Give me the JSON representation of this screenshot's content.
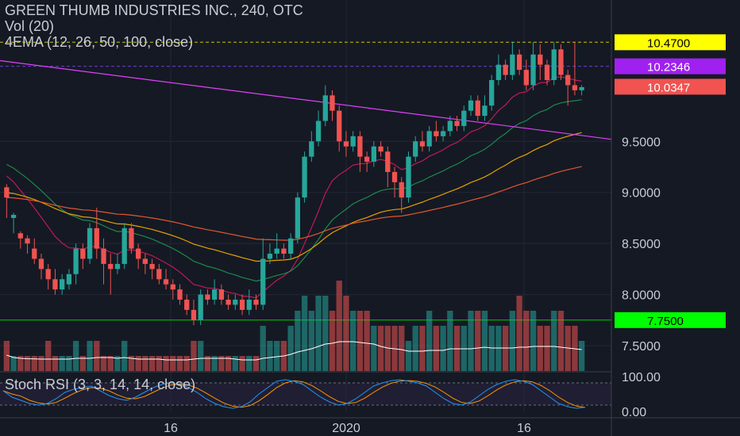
{
  "header": {
    "title": "GREEN THUMB INDUSTRIES INC., 240, OTC",
    "vol_label": "Vol (20)",
    "ema_label": "4EMA (12, 26, 50, 100, close)"
  },
  "stoch_panel": {
    "label": "Stoch RSI (3, 3, 14, 14, close)"
  },
  "price_axis": {
    "ticks": [
      "9.5000",
      "9.0000",
      "8.5000",
      "8.0000",
      "7.5000"
    ]
  },
  "stoch_axis": {
    "ticks": [
      "100.00",
      "0.00"
    ]
  },
  "time_axis": {
    "ticks": [
      "16",
      "2020",
      "16"
    ]
  },
  "price_tags": [
    {
      "text": "10.4700",
      "color": "#ffff00",
      "text_color": "#000000"
    },
    {
      "text": "10.2346",
      "color": "#a020f0",
      "text_color": "#ffffff"
    },
    {
      "text": "10.0347",
      "color": "#f05350",
      "text_color": "#ffffff"
    },
    {
      "text": "7.7500",
      "color": "#00ff00",
      "text_color": "#000000"
    }
  ],
  "colors": {
    "background": "#151924",
    "up_candle": "#26a69a",
    "down_candle": "#ef5350",
    "ema12": "#c2185b",
    "ema26": "#1b8a4a",
    "ema50": "#e6a100",
    "ema100": "#e0582e",
    "trendline": "#e040fb",
    "volume_ma": "#ffffff",
    "stoch_k": "#2196f3",
    "stoch_d": "#ff9800"
  },
  "chart_data": {
    "type": "candlestick",
    "title": "GREEN THUMB INDUSTRIES INC., 240, OTC",
    "y_range": [
      7.5,
      10.55
    ],
    "x_ticks": [
      "16",
      "2020",
      "16"
    ],
    "candles": [
      [
        9.05,
        8.95,
        9.08,
        8.75
      ],
      [
        8.75,
        8.78,
        8.8,
        8.6
      ],
      [
        8.6,
        8.55,
        8.62,
        8.45
      ],
      [
        8.55,
        8.5,
        8.58,
        8.4
      ],
      [
        8.45,
        8.35,
        8.55,
        8.3
      ],
      [
        8.35,
        8.25,
        8.4,
        8.15
      ],
      [
        8.25,
        8.15,
        8.3,
        8.05
      ],
      [
        8.15,
        8.05,
        8.25,
        8.0
      ],
      [
        8.05,
        8.15,
        8.2,
        8.0
      ],
      [
        8.1,
        8.2,
        8.25,
        8.05
      ],
      [
        8.2,
        8.45,
        8.5,
        8.1
      ],
      [
        8.45,
        8.35,
        8.5,
        8.25
      ],
      [
        8.35,
        8.65,
        8.7,
        8.3
      ],
      [
        8.65,
        8.45,
        8.85,
        8.35
      ],
      [
        8.45,
        8.3,
        8.55,
        8.1
      ],
      [
        8.3,
        8.25,
        8.4,
        8.0
      ],
      [
        8.25,
        8.3,
        8.4,
        8.2
      ],
      [
        8.3,
        8.65,
        8.7,
        8.25
      ],
      [
        8.65,
        8.45,
        8.7,
        8.4
      ],
      [
        8.45,
        8.35,
        8.5,
        8.25
      ],
      [
        8.35,
        8.3,
        8.4,
        8.2
      ],
      [
        8.3,
        8.25,
        8.35,
        8.15
      ],
      [
        8.25,
        8.15,
        8.3,
        8.1
      ],
      [
        8.15,
        8.1,
        8.25,
        8.05
      ],
      [
        8.1,
        8.05,
        8.15,
        7.95
      ],
      [
        8.05,
        7.95,
        8.1,
        7.9
      ],
      [
        7.95,
        7.85,
        8.0,
        7.8
      ],
      [
        7.85,
        7.75,
        7.95,
        7.7
      ],
      [
        7.75,
        8.0,
        8.05,
        7.7
      ],
      [
        8.0,
        7.95,
        8.05,
        7.9
      ],
      [
        7.95,
        8.05,
        8.15,
        7.9
      ],
      [
        8.05,
        7.95,
        8.1,
        7.9
      ],
      [
        7.95,
        7.9,
        8.0,
        7.85
      ],
      [
        7.9,
        7.95,
        8.0,
        7.85
      ],
      [
        7.95,
        7.85,
        8.0,
        7.8
      ],
      [
        7.85,
        7.95,
        8.05,
        7.8
      ],
      [
        7.95,
        7.9,
        8.0,
        7.85
      ],
      [
        7.9,
        8.35,
        8.55,
        7.85
      ],
      [
        8.35,
        8.4,
        8.5,
        8.3
      ],
      [
        8.4,
        8.45,
        8.6,
        8.35
      ],
      [
        8.45,
        8.4,
        8.5,
        8.35
      ],
      [
        8.4,
        8.55,
        8.6,
        8.35
      ],
      [
        8.55,
        8.95,
        9.0,
        8.5
      ],
      [
        8.95,
        9.35,
        9.4,
        8.9
      ],
      [
        9.35,
        9.5,
        9.6,
        9.3
      ],
      [
        9.5,
        9.7,
        9.8,
        9.45
      ],
      [
        9.7,
        9.95,
        10.05,
        9.65
      ],
      [
        9.95,
        9.8,
        10.0,
        9.7
      ],
      [
        9.8,
        9.5,
        9.85,
        9.4
      ],
      [
        9.5,
        9.45,
        9.6,
        9.35
      ],
      [
        9.45,
        9.55,
        9.6,
        9.4
      ],
      [
        9.55,
        9.35,
        9.6,
        9.2
      ],
      [
        9.35,
        9.3,
        9.4,
        9.2
      ],
      [
        9.3,
        9.45,
        9.5,
        9.25
      ],
      [
        9.45,
        9.4,
        9.5,
        9.35
      ],
      [
        9.4,
        9.2,
        9.45,
        9.05
      ],
      [
        9.2,
        9.1,
        9.25,
        8.95
      ],
      [
        9.1,
        8.95,
        9.15,
        8.8
      ],
      [
        8.95,
        9.35,
        9.4,
        8.9
      ],
      [
        9.35,
        9.5,
        9.55,
        9.3
      ],
      [
        9.5,
        9.45,
        9.6,
        9.4
      ],
      [
        9.45,
        9.6,
        9.65,
        9.4
      ],
      [
        9.6,
        9.55,
        9.7,
        9.5
      ],
      [
        9.55,
        9.6,
        9.65,
        9.5
      ],
      [
        9.6,
        9.7,
        9.75,
        9.55
      ],
      [
        9.7,
        9.65,
        9.75,
        9.6
      ],
      [
        9.65,
        9.8,
        9.85,
        9.6
      ],
      [
        9.8,
        9.9,
        9.95,
        9.75
      ],
      [
        9.9,
        9.75,
        9.95,
        9.7
      ],
      [
        9.75,
        9.85,
        9.95,
        9.7
      ],
      [
        9.85,
        10.1,
        10.15,
        9.8
      ],
      [
        10.1,
        10.25,
        10.35,
        10.05
      ],
      [
        10.25,
        10.15,
        10.3,
        10.1
      ],
      [
        10.15,
        10.35,
        10.47,
        10.1
      ],
      [
        10.35,
        10.2,
        10.4,
        10.15
      ],
      [
        10.2,
        10.05,
        10.3,
        10.0
      ],
      [
        10.05,
        10.35,
        10.47,
        10.0
      ],
      [
        10.35,
        10.25,
        10.45,
        10.1
      ],
      [
        10.25,
        10.1,
        10.3,
        10.05
      ],
      [
        10.1,
        10.4,
        10.47,
        10.05
      ],
      [
        10.4,
        10.15,
        10.45,
        10.1
      ],
      [
        10.15,
        10.05,
        10.2,
        9.85
      ],
      [
        10.05,
        10.0,
        10.47,
        9.95
      ],
      [
        10.0,
        10.03,
        10.05,
        9.95
      ]
    ],
    "volume": [
      2,
      1,
      1,
      1,
      1,
      1,
      2,
      1,
      1,
      1,
      2,
      1,
      2,
      2,
      1,
      1,
      1,
      2,
      1,
      1,
      1,
      1,
      1,
      1,
      1,
      1,
      1,
      2,
      2,
      1,
      1,
      1,
      1,
      1,
      1,
      1,
      1,
      3,
      2,
      2,
      2,
      3,
      4,
      5,
      4,
      5,
      5,
      4,
      6,
      5,
      4,
      4,
      4,
      3,
      3,
      3,
      3,
      3,
      2,
      3,
      3,
      4,
      3,
      3,
      4,
      3,
      3,
      4,
      4,
      4,
      3,
      3,
      3,
      4,
      5,
      4,
      4,
      3,
      3,
      4,
      4,
      3,
      3,
      2
    ],
    "stoch_k": [
      60,
      40,
      30,
      20,
      15,
      20,
      35,
      55,
      65,
      70,
      75,
      60,
      45,
      35,
      30,
      40,
      55,
      70,
      80,
      85,
      80,
      70,
      55,
      35,
      20,
      10,
      5,
      10,
      25,
      50,
      70,
      90,
      95,
      90,
      80,
      60,
      40,
      25,
      15,
      20,
      35,
      55,
      75,
      85,
      92,
      95,
      90,
      85,
      75,
      55,
      35,
      20,
      15,
      25,
      45,
      65,
      80,
      90,
      95,
      90,
      80,
      60,
      40,
      20,
      10,
      5,
      8
    ],
    "series_labels": [
      "Vol (20)",
      "4EMA (12, 26, 50, 100, close)",
      "Stoch RSI (3, 3, 14, 14, close)"
    ]
  }
}
